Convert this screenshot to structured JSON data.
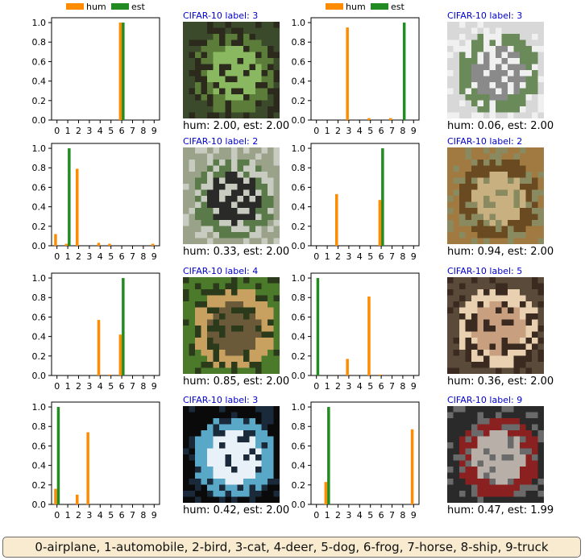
{
  "colors": {
    "hum": "#ff8c00",
    "est": "#228b22"
  },
  "legend": [
    "hum",
    "est"
  ],
  "ticks_x": [
    "0",
    "1",
    "2",
    "3",
    "4",
    "5",
    "6",
    "7",
    "8",
    "9"
  ],
  "ticks_y": [
    "0.0",
    "0.2",
    "0.4",
    "0.6",
    "0.8",
    "1.0"
  ],
  "chart_data": [
    {
      "type": "bar",
      "categories": [
        "0",
        "1",
        "2",
        "3",
        "4",
        "5",
        "6",
        "7",
        "8",
        "9"
      ],
      "ylim": [
        0,
        1.05
      ],
      "series": [
        {
          "name": "hum",
          "values": [
            0,
            0,
            0,
            0,
            0,
            0,
            1.0,
            0,
            0,
            0
          ]
        },
        {
          "name": "est",
          "values": [
            0,
            0,
            0,
            0,
            0,
            0,
            1.0,
            0,
            0,
            0
          ]
        }
      ]
    },
    {
      "type": "bar",
      "categories": [
        "0",
        "1",
        "2",
        "3",
        "4",
        "5",
        "6",
        "7",
        "8",
        "9"
      ],
      "ylim": [
        0,
        1.05
      ],
      "series": [
        {
          "name": "hum",
          "values": [
            0,
            0,
            0,
            0.95,
            0,
            0.02,
            0,
            0.02,
            0,
            0
          ]
        },
        {
          "name": "est",
          "values": [
            0,
            0,
            0,
            0,
            0,
            0,
            0,
            0,
            1.0,
            0
          ]
        }
      ]
    },
    {
      "type": "bar",
      "categories": [
        "0",
        "1",
        "2",
        "3",
        "4",
        "5",
        "6",
        "7",
        "8",
        "9"
      ],
      "ylim": [
        0,
        1.05
      ],
      "series": [
        {
          "name": "hum",
          "values": [
            0.12,
            0.02,
            0.79,
            0,
            0.03,
            0.02,
            0,
            0,
            0,
            0.02
          ]
        },
        {
          "name": "est",
          "values": [
            0,
            1.0,
            0,
            0,
            0,
            0,
            0,
            0,
            0,
            0
          ]
        }
      ]
    },
    {
      "type": "bar",
      "categories": [
        "0",
        "1",
        "2",
        "3",
        "4",
        "5",
        "6",
        "7",
        "8",
        "9"
      ],
      "ylim": [
        0,
        1.05
      ],
      "series": [
        {
          "name": "hum",
          "values": [
            0,
            0,
            0.53,
            0,
            0,
            0,
            0.47,
            0,
            0,
            0
          ]
        },
        {
          "name": "est",
          "values": [
            0,
            0,
            0,
            0,
            0,
            0,
            1.0,
            0,
            0,
            0
          ]
        }
      ]
    },
    {
      "type": "bar",
      "categories": [
        "0",
        "1",
        "2",
        "3",
        "4",
        "5",
        "6",
        "7",
        "8",
        "9"
      ],
      "ylim": [
        0,
        1.05
      ],
      "series": [
        {
          "name": "hum",
          "values": [
            0,
            0,
            0,
            0,
            0.57,
            0.01,
            0.42,
            0,
            0,
            0
          ]
        },
        {
          "name": "est",
          "values": [
            0,
            0,
            0,
            0,
            0,
            0,
            1.0,
            0,
            0,
            0
          ]
        }
      ]
    },
    {
      "type": "bar",
      "categories": [
        "0",
        "1",
        "2",
        "3",
        "4",
        "5",
        "6",
        "7",
        "8",
        "9"
      ],
      "ylim": [
        0,
        1.05
      ],
      "series": [
        {
          "name": "hum",
          "values": [
            0,
            0,
            0,
            0.17,
            0,
            0.81,
            0.01,
            0,
            0,
            0
          ]
        },
        {
          "name": "est",
          "values": [
            1.0,
            0,
            0,
            0,
            0,
            0,
            0,
            0,
            0,
            0
          ]
        }
      ]
    },
    {
      "type": "bar",
      "categories": [
        "0",
        "1",
        "2",
        "3",
        "4",
        "5",
        "6",
        "7",
        "8",
        "9"
      ],
      "ylim": [
        0,
        1.05
      ],
      "series": [
        {
          "name": "hum",
          "values": [
            0.16,
            0,
            0.1,
            0.74,
            0,
            0,
            0,
            0,
            0,
            0
          ]
        },
        {
          "name": "est",
          "values": [
            1.0,
            0,
            0,
            0,
            0,
            0,
            0,
            0,
            0,
            0
          ]
        }
      ]
    },
    {
      "type": "bar",
      "categories": [
        "0",
        "1",
        "2",
        "3",
        "4",
        "5",
        "6",
        "7",
        "8",
        "9"
      ],
      "ylim": [
        0,
        1.05
      ],
      "series": [
        {
          "name": "hum",
          "values": [
            0,
            0.23,
            0,
            0,
            0,
            0,
            0,
            0,
            0,
            0.77
          ]
        },
        {
          "name": "est",
          "values": [
            0,
            1.0,
            0,
            0,
            0,
            0,
            0,
            0,
            0,
            0
          ]
        }
      ]
    }
  ],
  "images": [
    {
      "caption": "CIFAR-10 label: 3",
      "result": "hum: 2.00, est: 2.00",
      "colors": [
        "#3a4a2a",
        "#8ab860",
        "#5c7d3a",
        "#2c2a1c"
      ]
    },
    {
      "caption": "CIFAR-10 label: 3",
      "result": "hum: 0.06, est: 2.00",
      "colors": [
        "#d8d8d8",
        "#8a8a8a",
        "#6b8a5a",
        "#f0f0f0"
      ]
    },
    {
      "caption": "CIFAR-10 label: 2",
      "result": "hum: 0.33, est: 2.00",
      "colors": [
        "#9aa28a",
        "#2a2a28",
        "#5a7a4a",
        "#c8ccc0"
      ]
    },
    {
      "caption": "CIFAR-10 label: 2",
      "result": "hum: 0.94, est: 2.00",
      "colors": [
        "#a07a40",
        "#c8b080",
        "#6a4a20",
        "#8a8a60"
      ]
    },
    {
      "caption": "CIFAR-10 label: 4",
      "result": "hum: 0.85, est: 2.00",
      "colors": [
        "#4a7a2a",
        "#6a5a3a",
        "#c8a060",
        "#2a3a1a"
      ]
    },
    {
      "caption": "CIFAR-10 label: 5",
      "result": "hum: 0.36, est: 2.00",
      "colors": [
        "#5a4a3a",
        "#c8a080",
        "#e8d0b0",
        "#3a2a20"
      ]
    },
    {
      "caption": "CIFAR-10 label: 3",
      "result": "hum: 0.42, est: 2.00",
      "colors": [
        "#0a0a0a",
        "#e8f0f8",
        "#5aa8c8",
        "#1a2a3a"
      ]
    },
    {
      "caption": "CIFAR-10 label: 9",
      "result": "hum: 0.47, est: 1.99",
      "colors": [
        "#2a2a2a",
        "#b8b0a8",
        "#8a2020",
        "#6a6a6a"
      ]
    }
  ],
  "footer": "0-airplane, 1-automobile, 2-bird, 3-cat, 4-deer, 5-dog, 6-frog, 7-horse, 8-ship, 9-truck"
}
